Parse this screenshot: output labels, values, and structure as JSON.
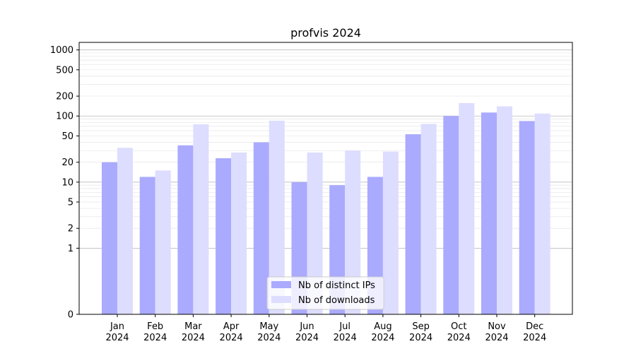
{
  "chart_data": {
    "type": "bar",
    "title": "profvis 2024",
    "xlabel": "",
    "ylabel": "",
    "yscale": "symlog",
    "ylim": [
      0,
      1300
    ],
    "grid": "horizontal",
    "legend_position": "bottom-center",
    "categories": [
      [
        "Jan",
        "2024"
      ],
      [
        "Feb",
        "2024"
      ],
      [
        "Mar",
        "2024"
      ],
      [
        "Apr",
        "2024"
      ],
      [
        "May",
        "2024"
      ],
      [
        "Jun",
        "2024"
      ],
      [
        "Jul",
        "2024"
      ],
      [
        "Aug",
        "2024"
      ],
      [
        "Sep",
        "2024"
      ],
      [
        "Oct",
        "2024"
      ],
      [
        "Nov",
        "2024"
      ],
      [
        "Dec",
        "2024"
      ]
    ],
    "yticks": [
      0,
      1,
      2,
      5,
      10,
      20,
      50,
      100,
      200,
      500,
      1000
    ],
    "ytick_labels": [
      "0",
      "1",
      "2",
      "5",
      "10",
      "20",
      "50",
      "100",
      "200",
      "500",
      "1000"
    ],
    "series": [
      {
        "name": "Nb of distinct IPs",
        "color": "#aaaaff",
        "values": [
          20,
          12,
          36,
          23,
          40,
          10,
          9,
          12,
          53,
          100,
          113,
          84
        ]
      },
      {
        "name": "Nb of downloads",
        "color": "#ddddff",
        "values": [
          33,
          15,
          75,
          28,
          85,
          28,
          30,
          29,
          76,
          157,
          140,
          109
        ]
      }
    ]
  }
}
